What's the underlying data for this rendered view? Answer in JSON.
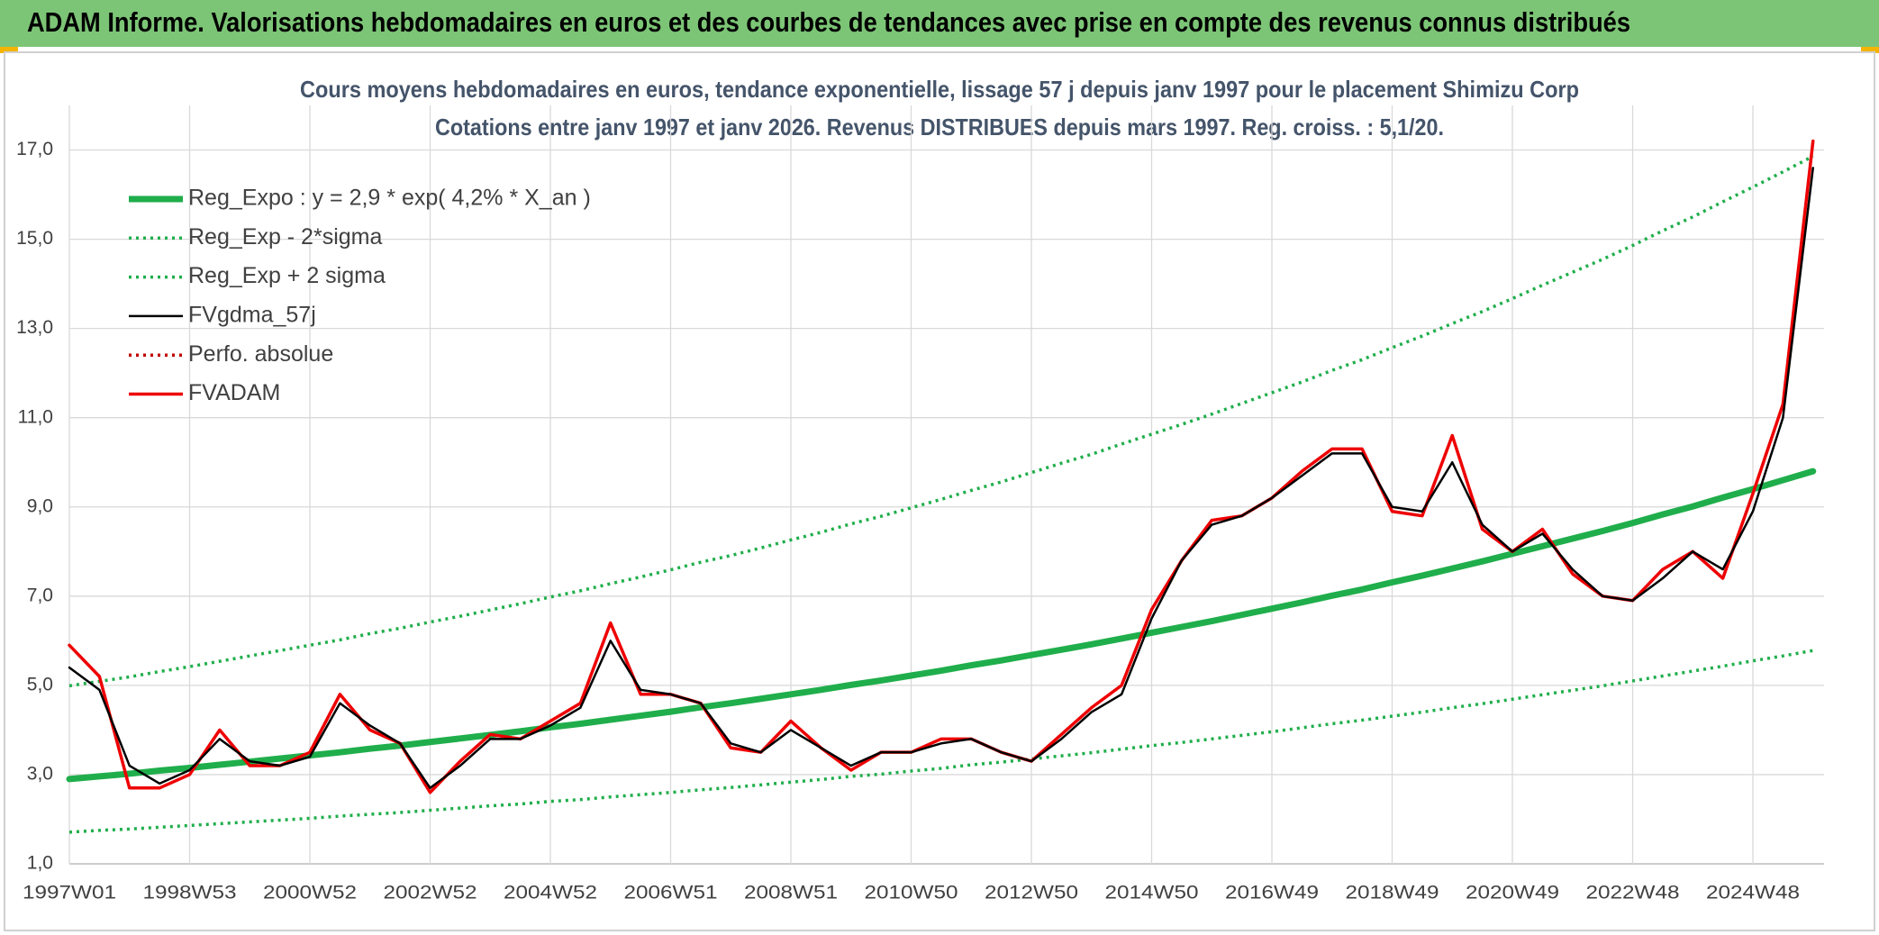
{
  "header": {
    "title": "ADAM Informe. Valorisations hebdomadaires en euros et des courbes de tendances avec prise en compte des revenus connus distribués"
  },
  "chart_data": {
    "type": "line",
    "title": "Cours moyens hebdomadaires en euros, tendance exponentielle, lissage 57 j depuis janv 1997 pour le placement Shimizu Corp",
    "subtitle": "Cotations entre janv 1997 et janv 2026. Revenus DISTRIBUES depuis mars 1997. Reg. croiss. : 5,1/20.",
    "categories": [
      "1997W01",
      null,
      null,
      null,
      "1998W53",
      null,
      null,
      null,
      "2000W52",
      null,
      null,
      null,
      "2002W52",
      null,
      null,
      null,
      "2004W52",
      null,
      null,
      null,
      "2006W51",
      null,
      null,
      null,
      "2008W51",
      null,
      null,
      null,
      "2010W50",
      null,
      null,
      null,
      "2012W50",
      null,
      null,
      null,
      "2014W50",
      null,
      null,
      null,
      "2016W49",
      null,
      null,
      null,
      "2018W49",
      null,
      null,
      null,
      "2020W49",
      null,
      null,
      null,
      "2022W48",
      null,
      null,
      null,
      "2024W48",
      null,
      null
    ],
    "ylim": [
      1,
      18
    ],
    "yticks": [
      {
        "value": 1,
        "label": "1,0"
      },
      {
        "value": 3,
        "label": "3,0"
      },
      {
        "value": 5,
        "label": "5,0"
      },
      {
        "value": 7,
        "label": "7,0"
      },
      {
        "value": 9,
        "label": "9,0"
      },
      {
        "value": 11,
        "label": "11,0"
      },
      {
        "value": 13,
        "label": "13,0"
      },
      {
        "value": 15,
        "label": "15,0"
      },
      {
        "value": 17,
        "label": "17,0"
      }
    ],
    "grid": true,
    "legend": "upper left",
    "series": [
      {
        "name": "Reg_Expo : y = 2,9 * exp( 4,2% *  X_an )",
        "color": "#1fae4b",
        "style": "solid",
        "values": [
          2.9,
          2.96,
          3.02,
          3.09,
          3.15,
          3.22,
          3.29,
          3.36,
          3.43,
          3.5,
          3.58,
          3.65,
          3.73,
          3.81,
          3.89,
          3.97,
          4.06,
          4.14,
          4.23,
          4.32,
          4.41,
          4.51,
          4.6,
          4.7,
          4.8,
          4.9,
          5.01,
          5.11,
          5.22,
          5.33,
          5.45,
          5.56,
          5.68,
          5.8,
          5.92,
          6.05,
          6.18,
          6.31,
          6.44,
          6.58,
          6.72,
          6.86,
          7.01,
          7.15,
          7.31,
          7.46,
          7.62,
          7.78,
          7.95,
          8.12,
          8.29,
          8.46,
          8.64,
          8.83,
          9.01,
          9.21,
          9.4,
          9.6,
          9.8
        ]
      },
      {
        "name": "Reg_Exp - 2*sigma",
        "color": "#1fae4b",
        "style": "dotted",
        "values": [
          1.71,
          1.75,
          1.78,
          1.82,
          1.86,
          1.9,
          1.94,
          1.98,
          2.02,
          2.07,
          2.11,
          2.15,
          2.2,
          2.25,
          2.3,
          2.34,
          2.4,
          2.44,
          2.5,
          2.55,
          2.6,
          2.66,
          2.71,
          2.77,
          2.83,
          2.89,
          2.96,
          3.01,
          3.08,
          3.14,
          3.22,
          3.28,
          3.35,
          3.42,
          3.49,
          3.57,
          3.65,
          3.72,
          3.8,
          3.88,
          3.96,
          4.05,
          4.14,
          4.22,
          4.31,
          4.4,
          4.5,
          4.59,
          4.69,
          4.79,
          4.89,
          4.99,
          5.1,
          5.21,
          5.32,
          5.43,
          5.55,
          5.66,
          5.78
        ]
      },
      {
        "name": "Reg_Exp + 2 sigma",
        "color": "#1fae4b",
        "style": "dotted",
        "values": [
          4.99,
          5.09,
          5.19,
          5.31,
          5.42,
          5.54,
          5.66,
          5.78,
          5.9,
          6.02,
          6.16,
          6.28,
          6.42,
          6.55,
          6.69,
          6.83,
          6.98,
          7.12,
          7.28,
          7.43,
          7.59,
          7.76,
          7.91,
          8.08,
          8.26,
          8.43,
          8.62,
          8.79,
          8.98,
          9.17,
          9.37,
          9.56,
          9.77,
          9.98,
          10.18,
          10.41,
          10.63,
          10.85,
          11.08,
          11.32,
          11.56,
          11.8,
          12.06,
          12.3,
          12.57,
          12.83,
          13.11,
          13.38,
          13.67,
          13.97,
          14.26,
          14.55,
          14.86,
          15.19,
          15.5,
          15.84,
          16.17,
          16.51,
          16.86
        ]
      },
      {
        "name": "FVgdma_57j",
        "color": "#000000",
        "style": "solid",
        "values": [
          5.4,
          4.9,
          3.2,
          2.8,
          3.1,
          3.8,
          3.3,
          3.2,
          3.4,
          4.6,
          4.1,
          3.7,
          2.7,
          3.2,
          3.8,
          3.8,
          4.1,
          4.5,
          6.0,
          4.9,
          4.8,
          4.6,
          3.7,
          3.5,
          4.0,
          3.6,
          3.2,
          3.5,
          3.5,
          3.7,
          3.8,
          3.5,
          3.3,
          3.8,
          4.4,
          4.8,
          6.5,
          7.8,
          8.6,
          8.8,
          9.2,
          9.7,
          10.2,
          10.2,
          9.0,
          8.9,
          10.0,
          8.6,
          8.0,
          8.4,
          7.6,
          7.0,
          6.9,
          7.4,
          8.0,
          7.6,
          8.9,
          11.0,
          16.6
        ]
      },
      {
        "name": "Perfo. absolue",
        "color": "#c00000",
        "style": "dotted",
        "values": [
          null,
          null,
          null,
          null,
          null,
          null,
          null,
          null,
          null,
          null,
          null,
          null,
          null,
          null,
          null,
          null,
          null,
          null,
          null,
          null,
          null,
          null,
          null,
          null,
          null,
          null,
          null,
          null,
          null,
          null,
          null,
          null,
          null,
          null,
          null,
          null,
          null,
          null,
          null,
          null,
          null,
          null,
          null,
          null,
          null,
          null,
          null,
          null,
          null,
          null,
          null,
          null,
          null,
          null,
          null,
          null,
          null,
          null,
          null
        ]
      },
      {
        "name": "FVADAM",
        "color": "#ee0000",
        "style": "solid",
        "values": [
          5.9,
          5.2,
          2.7,
          2.7,
          3.0,
          4.0,
          3.2,
          3.2,
          3.5,
          4.8,
          4.0,
          3.7,
          2.6,
          3.3,
          3.9,
          3.8,
          4.2,
          4.6,
          6.4,
          4.8,
          4.8,
          4.6,
          3.6,
          3.5,
          4.2,
          3.6,
          3.1,
          3.5,
          3.5,
          3.8,
          3.8,
          3.5,
          3.3,
          3.9,
          4.5,
          5.0,
          6.7,
          7.8,
          8.7,
          8.8,
          9.2,
          9.8,
          10.3,
          10.3,
          8.9,
          8.8,
          10.6,
          8.5,
          8.0,
          8.5,
          7.5,
          7.0,
          6.9,
          7.6,
          8.0,
          7.4,
          9.3,
          11.3,
          17.2
        ]
      }
    ]
  }
}
